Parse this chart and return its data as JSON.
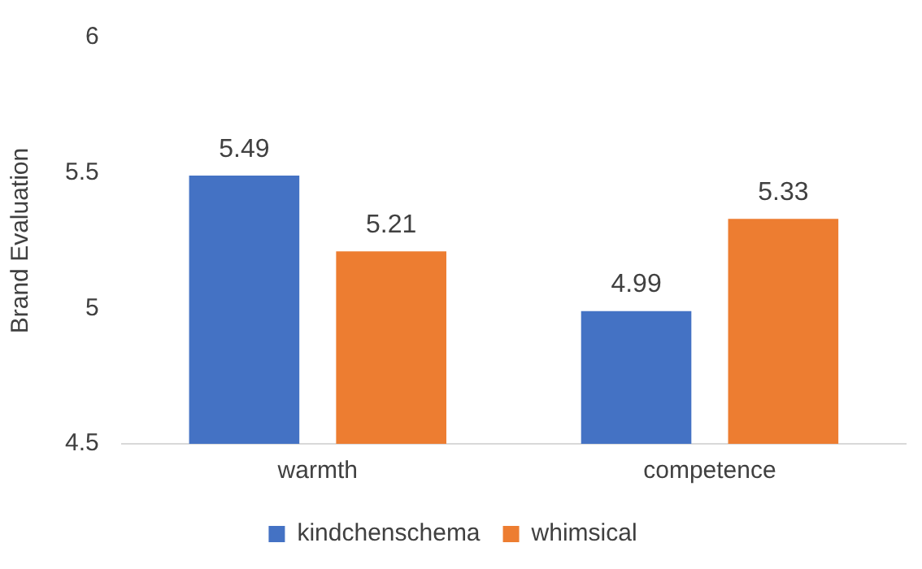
{
  "chart_data": {
    "type": "bar",
    "ylabel": "Brand Evaluation",
    "categories": [
      "warmth",
      "competence"
    ],
    "series": [
      {
        "name": "kindchenschema",
        "color": "#4472c4",
        "values": [
          5.49,
          4.99
        ]
      },
      {
        "name": "whimsical",
        "color": "#ed7d31",
        "values": [
          5.21,
          5.33
        ]
      }
    ],
    "ylim": [
      4.5,
      6
    ],
    "yticks": [
      4.5,
      5,
      5.5,
      6
    ],
    "grid": false,
    "legend": "bottom",
    "data_labels": true
  }
}
